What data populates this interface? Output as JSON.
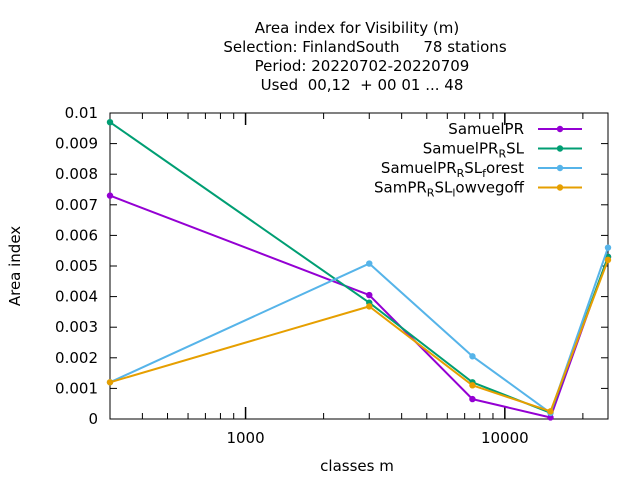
{
  "chart_data": {
    "type": "line",
    "title_lines": [
      "Area index  for Visibility (m)",
      "Selection: FinlandSouth     78 stations",
      "Period: 20220702-20220709",
      "Used  00,12  + 00 01 ... 48"
    ],
    "xlabel": "classes m",
    "ylabel": "Area index",
    "x_scale": "log",
    "xlim": [
      300,
      25000
    ],
    "ylim": [
      0,
      0.01
    ],
    "x_ticks": [
      1000,
      10000
    ],
    "x_tick_labels": [
      "1000",
      "10000"
    ],
    "y_ticks": [
      0,
      0.001,
      0.002,
      0.003,
      0.004,
      0.005,
      0.006,
      0.007,
      0.008,
      0.009,
      0.01
    ],
    "y_tick_labels": [
      "0",
      "0.001",
      "0.002",
      "0.003",
      "0.004",
      "0.005",
      "0.006",
      "0.007",
      "0.008",
      "0.009",
      "0.01"
    ],
    "grid": false,
    "legend_position": "top-right",
    "x": [
      300,
      3000,
      7500,
      15000,
      25000
    ],
    "series": [
      {
        "name": "SamuelPR",
        "legend": {
          "base": "SamuelPR",
          "sub": "",
          "after": "",
          "sub2": "",
          "after2": ""
        },
        "color": "#9400d3",
        "values": [
          0.0073,
          0.00405,
          0.00065,
          5e-05,
          0.0053
        ]
      },
      {
        "name": "SamuelPR_RSL",
        "legend": {
          "base": "SamuelPR",
          "sub": "R",
          "after": "SL",
          "sub2": "",
          "after2": ""
        },
        "color": "#009e73",
        "values": [
          0.0097,
          0.0038,
          0.0012,
          0.0002,
          0.0053
        ]
      },
      {
        "name": "SamuelPR_RSL_forest",
        "legend": {
          "base": "SamuelPR",
          "sub": "R",
          "after": "SL",
          "sub2": "f",
          "after2": "orest"
        },
        "color": "#56b4e9",
        "values": [
          0.0012,
          0.00508,
          0.00205,
          0.0002,
          0.0056
        ]
      },
      {
        "name": "SamPR_RSL_lowvegoff",
        "legend": {
          "base": "SamPR",
          "sub": "R",
          "after": "SL",
          "sub2": "l",
          "after2": "owvegoff"
        },
        "color": "#e69f00",
        "values": [
          0.0012,
          0.00368,
          0.0011,
          0.00025,
          0.0052
        ]
      }
    ]
  }
}
